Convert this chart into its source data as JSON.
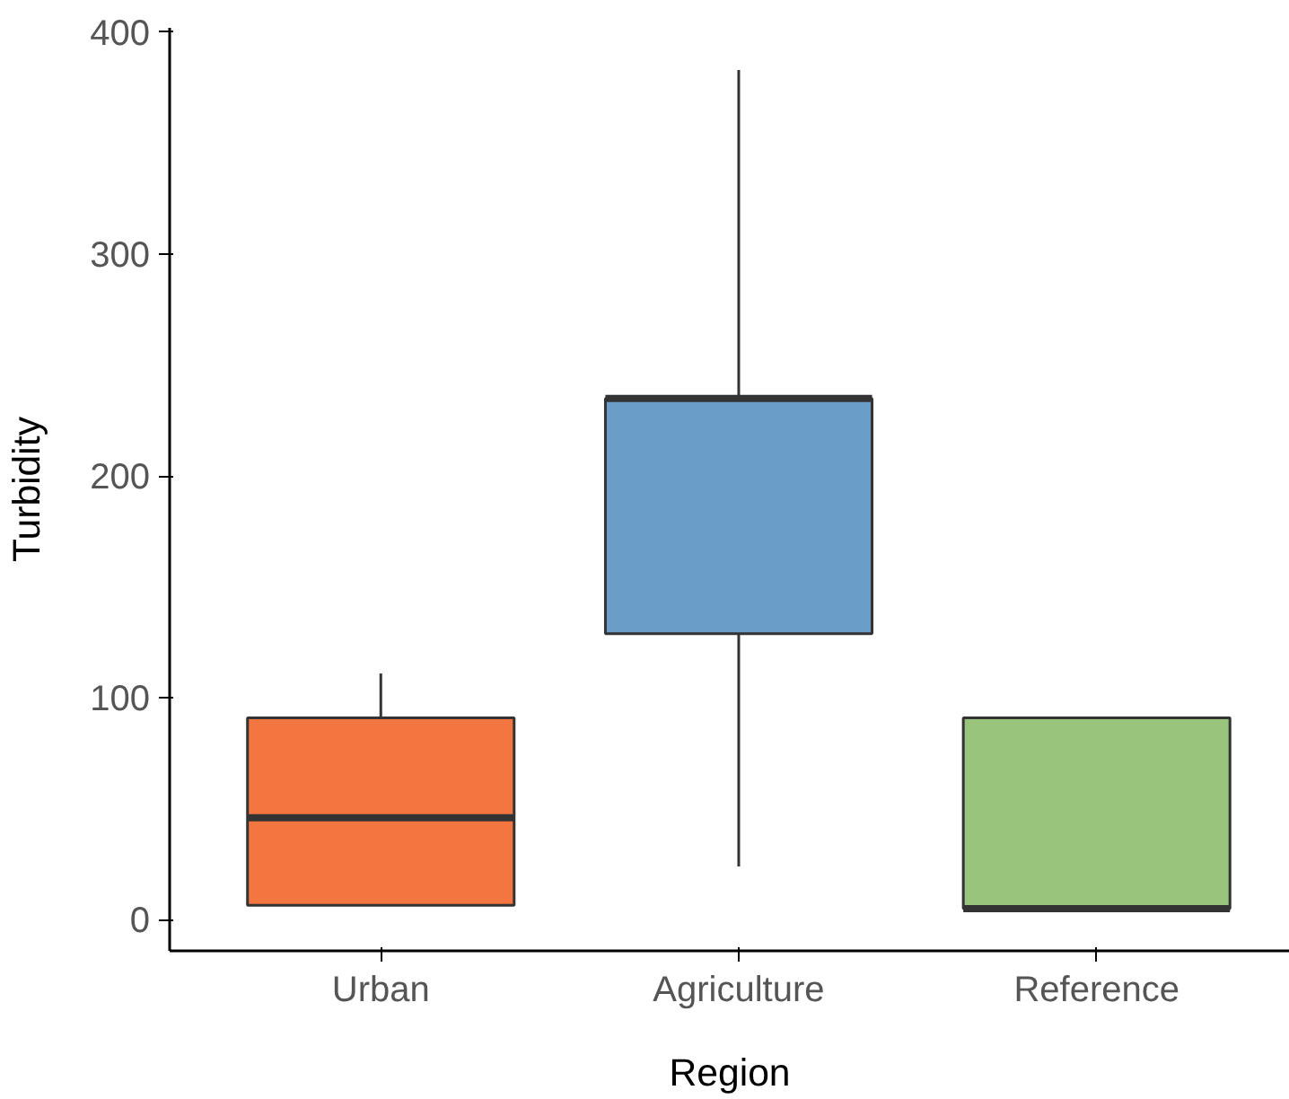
{
  "chart_data": {
    "type": "box",
    "xlabel": "Region",
    "ylabel": "Turbidity",
    "categories": [
      "Urban",
      "Agriculture",
      "Reference"
    ],
    "colors": [
      "#f37540",
      "#6a9dc8",
      "#98c47c"
    ],
    "boxes": [
      {
        "low": 6.5,
        "q1": 6.5,
        "median": 46,
        "q3": 91,
        "high": 111
      },
      {
        "low": 24,
        "q1": 129,
        "median": 235,
        "q3": 235,
        "high": 383
      },
      {
        "low": 5,
        "q1": 5,
        "median": 5,
        "q3": 91,
        "high": 91
      }
    ],
    "ylim": [
      -14,
      402
    ],
    "yticks": [
      0,
      100,
      200,
      300,
      400
    ],
    "grid": false
  }
}
